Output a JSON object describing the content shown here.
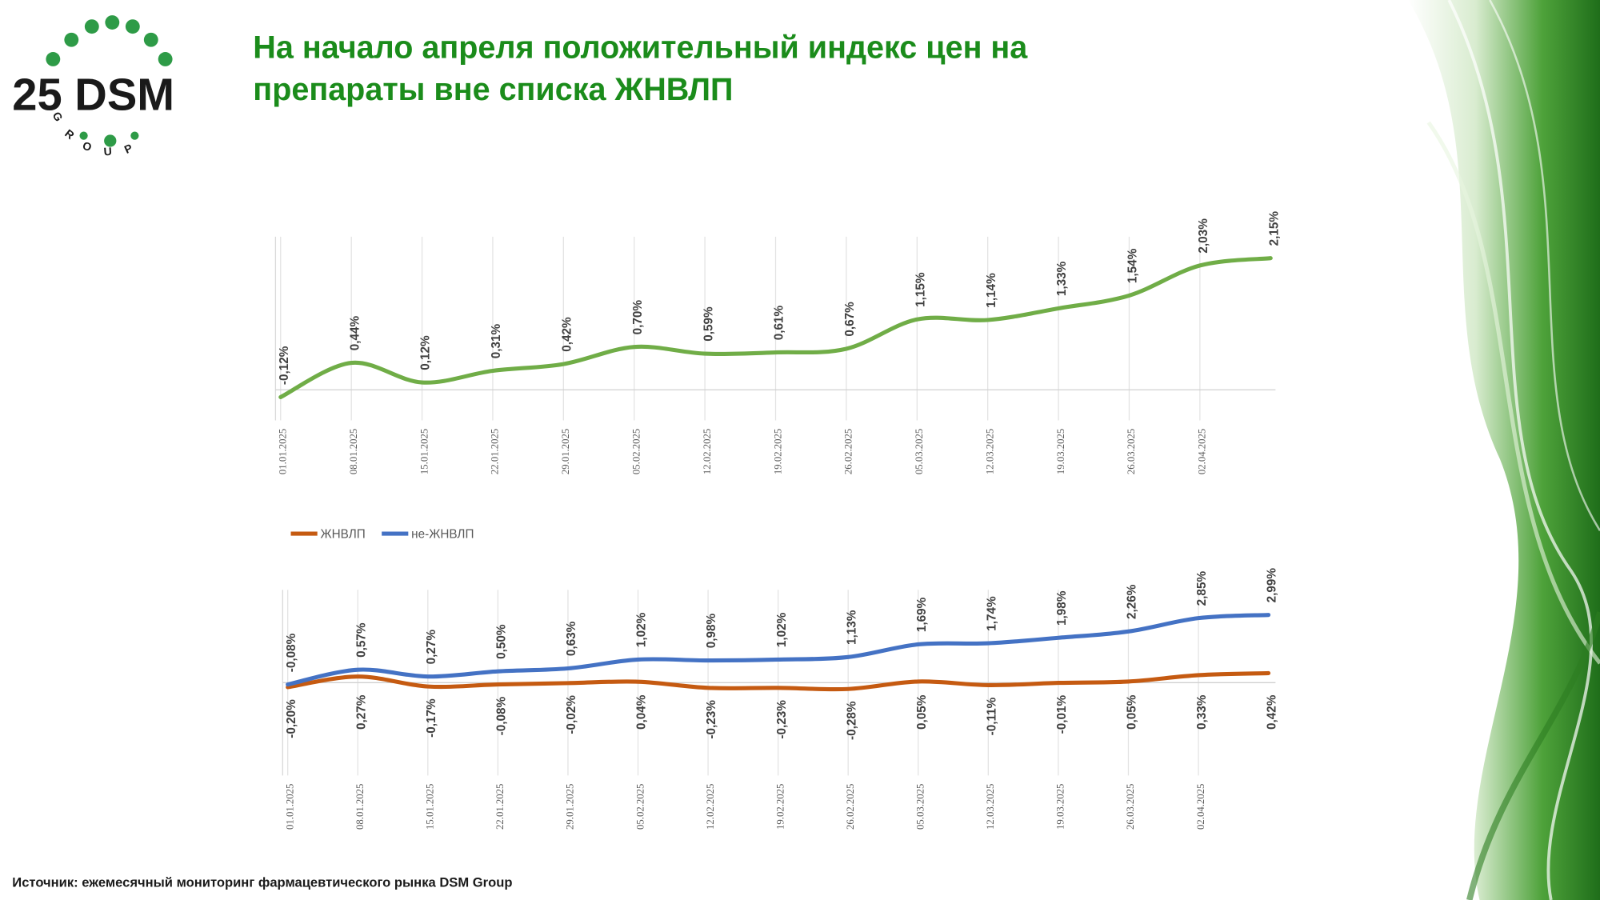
{
  "header": {
    "title_lines": [
      "На начало апреля положительный индекс цен на",
      "препараты вне списка ЖНВЛП"
    ]
  },
  "logo": {
    "text": "25 DSM",
    "sub": "GROUP"
  },
  "footer": {
    "source": "Источник: ежемесячный мониторинг фармацевтического рынка DSM Group"
  },
  "chart_data": [
    {
      "type": "line",
      "categories": [
        "01.01.2025",
        "08.01.2025",
        "15.01.2025",
        "22.01.2025",
        "29.01.2025",
        "05.02.2025",
        "12.02.2025",
        "19.02.2025",
        "26.02.2025",
        "05.03.2025",
        "12.03.2025",
        "19.03.2025",
        "26.03.2025",
        "02.04.2025",
        null
      ],
      "values": [
        -0.12,
        0.44,
        0.12,
        0.31,
        0.42,
        0.7,
        0.59,
        0.61,
        0.67,
        1.15,
        1.14,
        1.33,
        1.54,
        2.03,
        2.15
      ],
      "value_labels": [
        "-0,12%",
        "0,44%",
        "0,12%",
        "0,31%",
        "0,42%",
        "0,70%",
        "0,59%",
        "0,61%",
        "0,67%",
        "1,15%",
        "1,14%",
        "1,33%",
        "1,54%",
        "2,03%",
        "2,15%"
      ],
      "color": "#70ad47",
      "ylim": [
        -0.5,
        2.5
      ],
      "grid": true
    },
    {
      "type": "line",
      "categories": [
        "01.01.2025",
        "08.01.2025",
        "15.01.2025",
        "22.01.2025",
        "29.01.2025",
        "05.02.2025",
        "12.02.2025",
        "19.02.2025",
        "26.02.2025",
        "05.03.2025",
        "12.03.2025",
        "19.03.2025",
        "26.03.2025",
        "02.04.2025",
        null
      ],
      "series": [
        {
          "name": "ЖНВЛП",
          "color": "#c55a11",
          "values": [
            -0.2,
            0.27,
            -0.17,
            -0.08,
            -0.02,
            0.04,
            -0.23,
            -0.23,
            -0.28,
            0.05,
            -0.11,
            -0.01,
            0.05,
            0.33,
            0.42
          ],
          "value_labels": [
            "-0,20%",
            "0,27%",
            "-0,17%",
            "-0,08%",
            "-0,02%",
            "0,04%",
            "-0,23%",
            "-0,23%",
            "-0,28%",
            "0,05%",
            "-0,11%",
            "-0,01%",
            "0,05%",
            "0,33%",
            "0,42%"
          ]
        },
        {
          "name": "не-ЖНВЛП",
          "color": "#4472c4",
          "values": [
            -0.08,
            0.57,
            0.27,
            0.5,
            0.63,
            1.02,
            0.98,
            1.02,
            1.13,
            1.69,
            1.74,
            1.98,
            2.26,
            2.85,
            2.99
          ],
          "value_labels": [
            "-0,08%",
            "0,57%",
            "0,27%",
            "0,50%",
            "0,63%",
            "1,02%",
            "0,98%",
            "1,02%",
            "1,13%",
            "1,69%",
            "1,74%",
            "1,98%",
            "2,26%",
            "2,85%",
            "2,99%"
          ]
        }
      ],
      "ylim": [
        -4.1,
        4.1
      ],
      "grid": true,
      "legend": "top-left"
    }
  ]
}
